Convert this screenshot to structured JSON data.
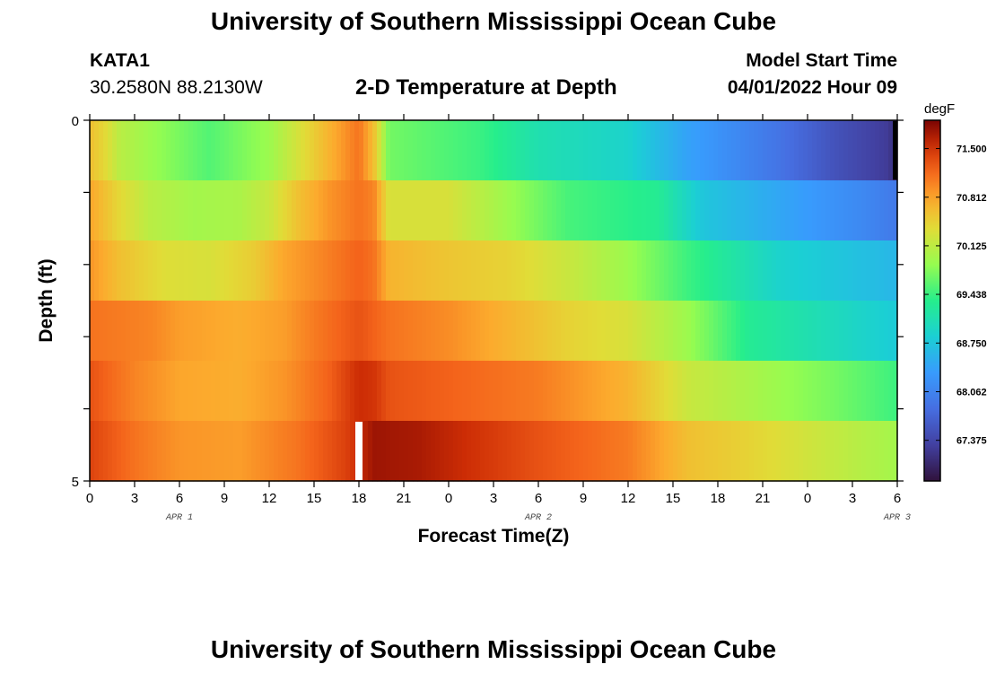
{
  "header": {
    "title": "University of Southern Mississippi Ocean Cube",
    "station_id": "KATA1",
    "station_coords": "30.2580N  88.2130W",
    "plot_title": "2-D Temperature at Depth",
    "model_start_label": "Model Start Time",
    "model_start_time": "04/01/2022 Hour 09"
  },
  "footer": {
    "title": "University of Southern Mississippi Ocean Cube"
  },
  "chart_data": {
    "type": "heatmap",
    "title": "2-D Temperature at Depth",
    "xlabel": "Forecast Time(Z)",
    "ylabel": "Depth (ft)",
    "x_tick_labels": [
      "0",
      "3",
      "6",
      "9",
      "12",
      "15",
      "18",
      "21",
      "0",
      "3",
      "6",
      "9",
      "12",
      "15",
      "18",
      "21",
      "0",
      "3",
      "6"
    ],
    "x_date_labels": [
      {
        "label": "APR 1",
        "hour_index": 6
      },
      {
        "label": "APR 2",
        "hour_index": 30
      },
      {
        "label": "APR 3",
        "hour_index": 54
      }
    ],
    "x_range_hours": [
      0,
      54
    ],
    "y_tick_labels": [
      "0",
      "5"
    ],
    "ylim": [
      0,
      5
    ],
    "colorbar": {
      "unit": "degF",
      "tick_labels": [
        "71.500",
        "70.812",
        "70.125",
        "69.438",
        "68.750",
        "68.062",
        "67.375"
      ],
      "vmin": 66.8,
      "vmax": 71.9
    },
    "rows": [
      {
        "depth_ft": 0,
        "keyframes": [
          [
            0,
            70.6
          ],
          [
            1,
            70.4
          ],
          [
            2,
            70.1
          ],
          [
            4,
            69.9
          ],
          [
            8,
            69.55
          ],
          [
            12,
            69.9
          ],
          [
            14,
            70.3
          ],
          [
            17,
            70.9
          ],
          [
            18,
            71.1
          ],
          [
            19,
            70.6
          ],
          [
            20,
            69.7
          ],
          [
            26,
            69.45
          ],
          [
            30,
            69.1
          ],
          [
            36,
            68.9
          ],
          [
            40,
            68.4
          ],
          [
            46,
            67.9
          ],
          [
            50,
            67.5
          ],
          [
            53.5,
            67.25
          ],
          [
            54,
            66.8
          ]
        ]
      },
      {
        "depth_ft": 1,
        "keyframes": [
          [
            0,
            70.8
          ],
          [
            2,
            70.4
          ],
          [
            4,
            70.1
          ],
          [
            7,
            69.95
          ],
          [
            10,
            70.0
          ],
          [
            12,
            70.2
          ],
          [
            14,
            70.6
          ],
          [
            16,
            70.9
          ],
          [
            18,
            71.1
          ],
          [
            19,
            71.0
          ],
          [
            20,
            70.3
          ],
          [
            24,
            70.3
          ],
          [
            28,
            69.9
          ],
          [
            32,
            69.5
          ],
          [
            38,
            69.3
          ],
          [
            41,
            68.75
          ],
          [
            46,
            68.45
          ],
          [
            52,
            68.1
          ],
          [
            54,
            67.95
          ]
        ]
      },
      {
        "depth_ft": 2,
        "keyframes": [
          [
            0,
            70.9
          ],
          [
            2,
            70.6
          ],
          [
            5,
            70.35
          ],
          [
            8,
            70.3
          ],
          [
            11,
            70.5
          ],
          [
            13,
            70.8
          ],
          [
            15,
            70.95
          ],
          [
            18,
            71.2
          ],
          [
            19,
            71.1
          ],
          [
            20,
            70.7
          ],
          [
            24,
            70.55
          ],
          [
            28,
            70.45
          ],
          [
            32,
            70.2
          ],
          [
            36,
            69.9
          ],
          [
            40,
            69.45
          ],
          [
            46,
            68.9
          ],
          [
            54,
            68.6
          ]
        ]
      },
      {
        "depth_ft": 3,
        "keyframes": [
          [
            0,
            71.1
          ],
          [
            4,
            71.0
          ],
          [
            6,
            70.85
          ],
          [
            10,
            70.75
          ],
          [
            13,
            70.85
          ],
          [
            15,
            71.05
          ],
          [
            18,
            71.3
          ],
          [
            19,
            71.2
          ],
          [
            20,
            71.1
          ],
          [
            24,
            70.95
          ],
          [
            28,
            70.7
          ],
          [
            32,
            70.45
          ],
          [
            36,
            70.3
          ],
          [
            40,
            69.9
          ],
          [
            44,
            69.3
          ],
          [
            50,
            69.0
          ],
          [
            54,
            68.8
          ]
        ]
      },
      {
        "depth_ft": 4,
        "keyframes": [
          [
            0,
            71.3
          ],
          [
            3,
            71.0
          ],
          [
            6,
            70.8
          ],
          [
            10,
            70.75
          ],
          [
            13,
            70.9
          ],
          [
            16,
            71.2
          ],
          [
            18,
            71.55
          ],
          [
            19,
            71.5
          ],
          [
            20,
            71.3
          ],
          [
            24,
            71.2
          ],
          [
            30,
            71.05
          ],
          [
            36,
            70.7
          ],
          [
            40,
            70.2
          ],
          [
            44,
            70.0
          ],
          [
            50,
            69.7
          ],
          [
            54,
            69.45
          ]
        ]
      },
      {
        "depth_ft": 5,
        "keyframes": [
          [
            0,
            71.4
          ],
          [
            3,
            71.1
          ],
          [
            6,
            70.9
          ],
          [
            10,
            70.85
          ],
          [
            14,
            71.1
          ],
          [
            17,
            71.4
          ],
          [
            18,
            71.55
          ],
          [
            19,
            71.75
          ],
          [
            22,
            71.7
          ],
          [
            26,
            71.5
          ],
          [
            30,
            71.3
          ],
          [
            36,
            71.05
          ],
          [
            40,
            70.6
          ],
          [
            44,
            70.45
          ],
          [
            48,
            70.25
          ],
          [
            52,
            70.05
          ],
          [
            54,
            69.95
          ]
        ]
      }
    ],
    "missing_markers": [
      {
        "row_depth_ft": 5,
        "hour": 18,
        "color": "#ffffff"
      },
      {
        "row_depth_ft": 0,
        "hour": 54,
        "color": "#000000"
      }
    ]
  }
}
